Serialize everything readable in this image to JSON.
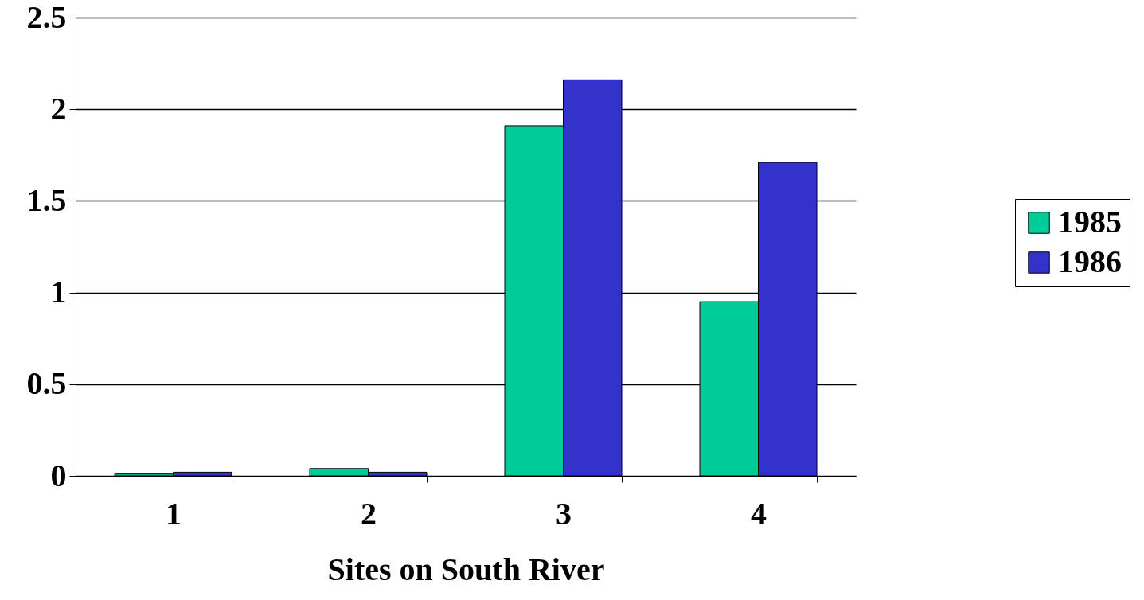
{
  "chart_data": {
    "type": "bar",
    "xlabel": "Sites on South River",
    "categories": [
      "1",
      "2",
      "3",
      "4"
    ],
    "series": [
      {
        "name": "1985",
        "color": "#00cc99",
        "values": [
          0.01,
          0.04,
          1.91,
          0.95
        ]
      },
      {
        "name": "1986",
        "color": "#3333cc",
        "values": [
          0.02,
          0.02,
          2.16,
          1.71
        ]
      }
    ],
    "ylim": [
      0,
      2.5
    ],
    "yticks": [
      {
        "value": 0,
        "label": "0"
      },
      0.5,
      {
        "value": 1,
        "label": "1"
      },
      1.5,
      {
        "value": 2,
        "label": "2"
      },
      2.5
    ],
    "grid": "y",
    "legend": "right"
  }
}
